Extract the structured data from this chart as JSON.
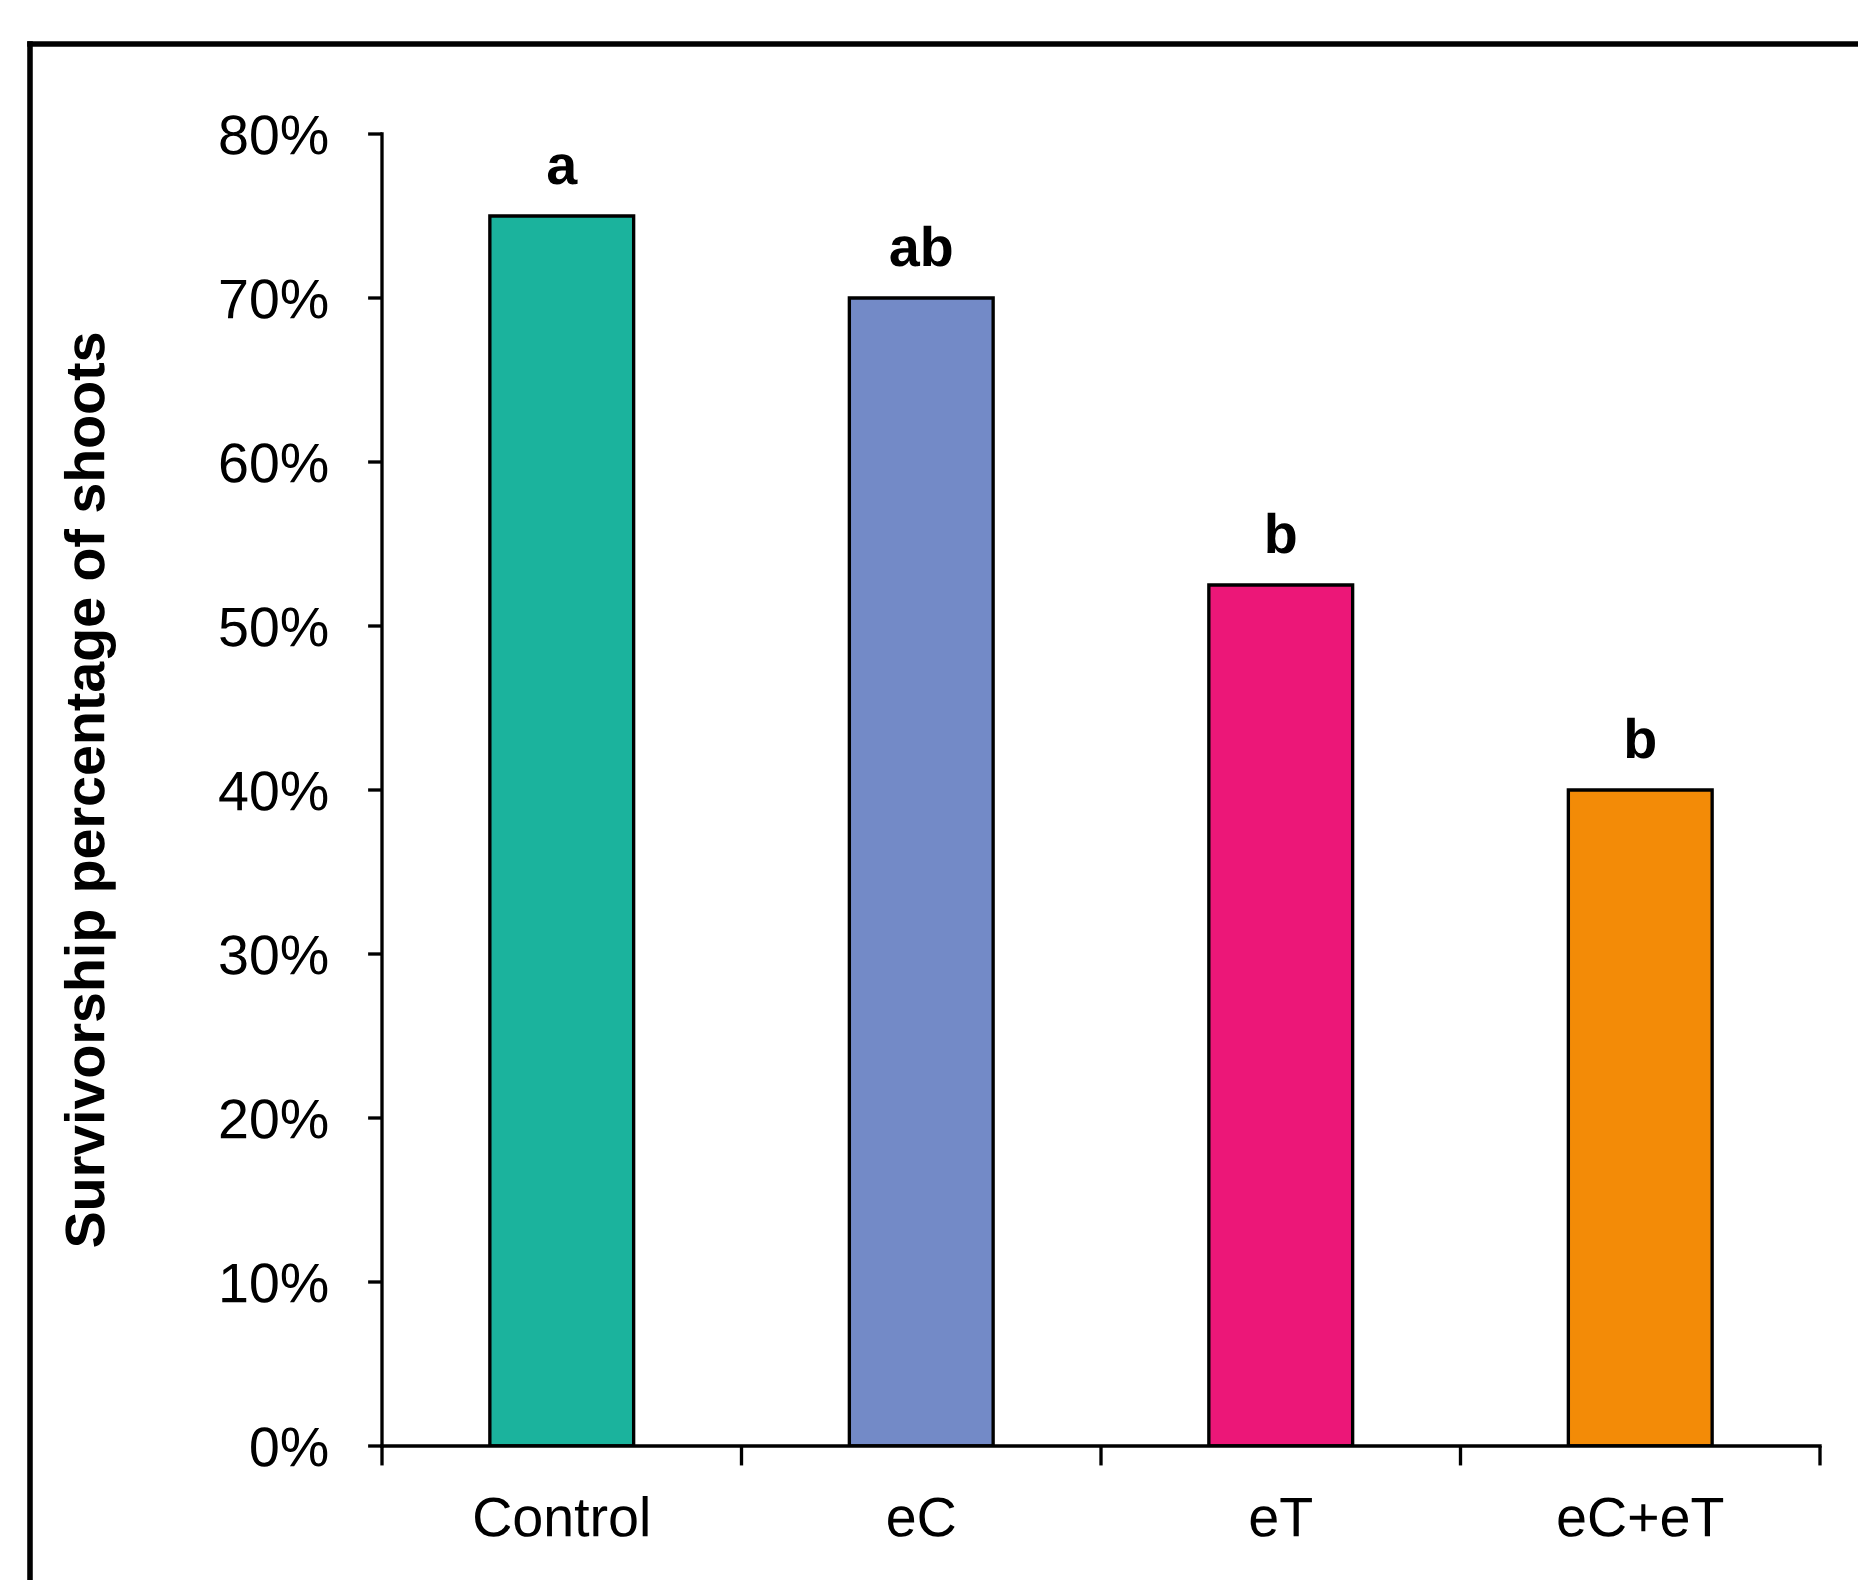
{
  "chart_data": {
    "type": "bar",
    "ylabel": "Survivorship percentage of shoots",
    "categories": [
      "Control",
      "eC",
      "eT",
      "eC+eT"
    ],
    "values": [
      75,
      70,
      52.5,
      40
    ],
    "colors": [
      "#1bb39d",
      "#738ac7",
      "#ec1778",
      "#f38b07"
    ],
    "ylim": [
      0,
      80
    ],
    "yticks": [
      {
        "value": 0,
        "label": "0%"
      },
      {
        "value": 10,
        "label": "10%"
      },
      {
        "value": 20,
        "label": "20%"
      },
      {
        "value": 30,
        "label": "30%"
      },
      {
        "value": 40,
        "label": "40%"
      },
      {
        "value": 50,
        "label": "50%"
      },
      {
        "value": 60,
        "label": "60%"
      },
      {
        "value": 70,
        "label": "70%"
      },
      {
        "value": 80,
        "label": "80%"
      }
    ],
    "annotations": [
      {
        "text": "a",
        "x": "Control",
        "y": 75
      },
      {
        "text": "ab",
        "x": "eC",
        "y": 70
      },
      {
        "text": "b",
        "x": "eT",
        "y": 52.5
      },
      {
        "text": "b",
        "x": "eC+eT",
        "y": 40
      }
    ]
  }
}
